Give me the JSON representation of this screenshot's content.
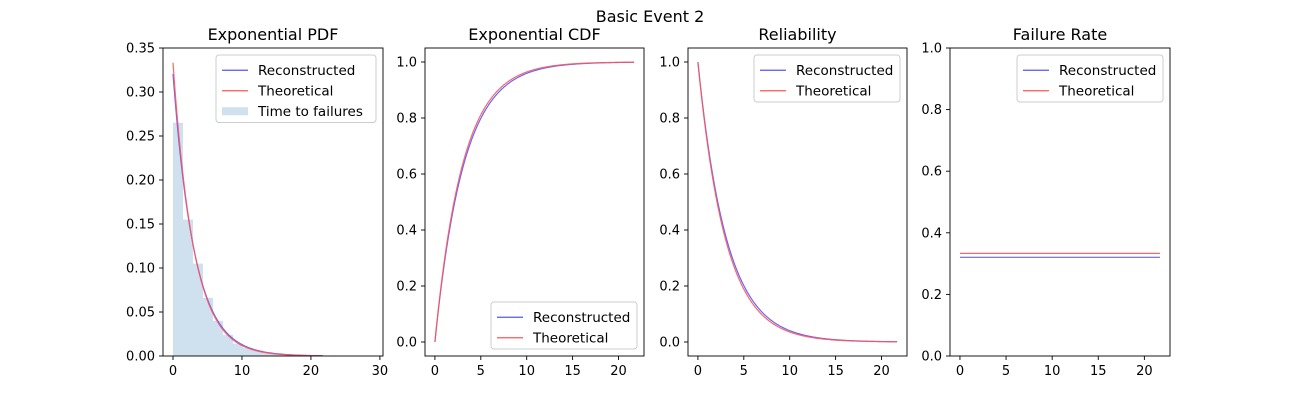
{
  "figure": {
    "suptitle": "Basic Event 2",
    "background": "#ffffff"
  },
  "colors": {
    "reconstructed": "#5555ff",
    "theoretical": "#ff5555",
    "histogram": "#cfe0ee"
  },
  "chart_data": [
    {
      "type": "line",
      "title": "Exponential PDF",
      "xlim": [
        -1.45,
        30.45
      ],
      "ylim": [
        0,
        0.35
      ],
      "xticks": [
        0,
        10,
        20,
        30
      ],
      "xtick_labels": [
        "0",
        "10",
        "20",
        "30"
      ],
      "yticks": [
        0,
        0.05,
        0.1,
        0.15,
        0.2,
        0.25,
        0.3,
        0.35
      ],
      "ytick_labels": [
        "0.00",
        "0.05",
        "0.10",
        "0.15",
        "0.20",
        "0.25",
        "0.30",
        "0.35"
      ],
      "legend": {
        "location": "upper right",
        "entries": [
          "Reconstructed",
          "Theoretical",
          "Time to failures"
        ]
      },
      "histogram": {
        "name": "Time to failures",
        "bin_edges": [
          0,
          1.45,
          2.9,
          4.35,
          5.8,
          7.25,
          8.7,
          10.15,
          11.6,
          13.05,
          14.5,
          15.95,
          17.4,
          18.85,
          20.3,
          21.75,
          23.2,
          24.65,
          26.1,
          27.55,
          29.0
        ],
        "counts": [
          0.265,
          0.155,
          0.105,
          0.066,
          0.04,
          0.024,
          0.014,
          0.009,
          0.006,
          0.004,
          0.003,
          0.002,
          0.0015,
          0.001,
          0.0007,
          0.0005,
          0.0004,
          0.0003,
          0.0002,
          0.0001
        ]
      },
      "series": [
        {
          "name": "Reconstructed",
          "function": "pdf",
          "rate": 0.3205,
          "x_range": [
            0,
            21.7
          ]
        },
        {
          "name": "Theoretical",
          "function": "pdf",
          "rate": 0.3333,
          "x_range": [
            0,
            21.7
          ]
        }
      ]
    },
    {
      "type": "line",
      "title": "Exponential CDF",
      "xlim": [
        -1.08,
        22.78
      ],
      "ylim": [
        -0.05,
        1.05
      ],
      "xticks": [
        0,
        5,
        10,
        15,
        20
      ],
      "xtick_labels": [
        "0",
        "5",
        "10",
        "15",
        "20"
      ],
      "yticks": [
        0,
        0.2,
        0.4,
        0.6,
        0.8,
        1.0
      ],
      "ytick_labels": [
        "0.0",
        "0.2",
        "0.4",
        "0.6",
        "0.8",
        "1.0"
      ],
      "legend": {
        "location": "lower right",
        "entries": [
          "Reconstructed",
          "Theoretical"
        ]
      },
      "series": [
        {
          "name": "Reconstructed",
          "function": "cdf",
          "rate": 0.3205,
          "x_range": [
            0,
            21.7
          ]
        },
        {
          "name": "Theoretical",
          "function": "cdf",
          "rate": 0.3333,
          "x_range": [
            0,
            21.7
          ]
        }
      ]
    },
    {
      "type": "line",
      "title": "Reliability",
      "xlim": [
        -1.08,
        22.78
      ],
      "ylim": [
        -0.05,
        1.05
      ],
      "xticks": [
        0,
        5,
        10,
        15,
        20
      ],
      "xtick_labels": [
        "0",
        "5",
        "10",
        "15",
        "20"
      ],
      "yticks": [
        0,
        0.2,
        0.4,
        0.6,
        0.8,
        1.0
      ],
      "ytick_labels": [
        "0.0",
        "0.2",
        "0.4",
        "0.6",
        "0.8",
        "1.0"
      ],
      "legend": {
        "location": "upper right",
        "entries": [
          "Reconstructed",
          "Theoretical"
        ]
      },
      "series": [
        {
          "name": "Reconstructed",
          "function": "reliability",
          "rate": 0.3205,
          "x_range": [
            0,
            21.7
          ]
        },
        {
          "name": "Theoretical",
          "function": "reliability",
          "rate": 0.3333,
          "x_range": [
            0,
            21.7
          ]
        }
      ]
    },
    {
      "type": "line",
      "title": "Failure Rate",
      "xlim": [
        -1.08,
        22.78
      ],
      "ylim": [
        0,
        1.0
      ],
      "xticks": [
        0,
        5,
        10,
        15,
        20
      ],
      "xtick_labels": [
        "0",
        "5",
        "10",
        "15",
        "20"
      ],
      "yticks": [
        0,
        0.2,
        0.4,
        0.6,
        0.8,
        1.0
      ],
      "ytick_labels": [
        "0.0",
        "0.2",
        "0.4",
        "0.6",
        "0.8",
        "1.0"
      ],
      "legend": {
        "location": "upper right",
        "entries": [
          "Reconstructed",
          "Theoretical"
        ]
      },
      "series": [
        {
          "name": "Reconstructed",
          "function": "hazard",
          "rate": 0.3205,
          "x_range": [
            0,
            21.7
          ]
        },
        {
          "name": "Theoretical",
          "function": "hazard",
          "rate": 0.3333,
          "x_range": [
            0,
            21.7
          ]
        }
      ]
    }
  ]
}
